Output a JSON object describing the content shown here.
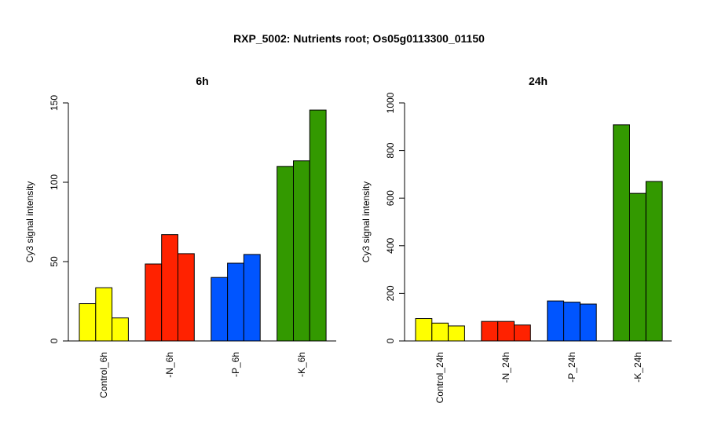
{
  "figure": {
    "title": "RXP_5002: Nutrients root; Os05g0113300_01150"
  },
  "chart_data": [
    {
      "type": "bar",
      "title": "6h",
      "ylabel": "Cy3 signal intensity",
      "ylim": [
        0,
        150
      ],
      "yticks": [
        0,
        50,
        100,
        150
      ],
      "categories": [
        "Control_6h",
        "-N_6h",
        "-P_6h",
        "-K_6h"
      ],
      "group_colors": [
        "#FFFF00",
        "#FF2200",
        "#0055FF",
        "#339900"
      ],
      "values": [
        [
          23.5,
          33.5,
          14.5
        ],
        [
          48.5,
          67.0,
          55.0
        ],
        [
          40.0,
          49.0,
          54.5
        ],
        [
          110.0,
          113.5,
          145.5
        ]
      ],
      "grid": false
    },
    {
      "type": "bar",
      "title": "24h",
      "ylabel": "Cy3 signal intensity",
      "ylim": [
        0,
        1000
      ],
      "yticks": [
        0,
        200,
        400,
        600,
        800,
        1000
      ],
      "categories": [
        "Control_24h",
        "-N_24h",
        "-P_24h",
        "-K_24h"
      ],
      "group_colors": [
        "#FFFF00",
        "#FF2200",
        "#0055FF",
        "#339900"
      ],
      "values": [
        [
          94,
          75,
          63
        ],
        [
          82,
          82,
          67
        ],
        [
          168,
          163,
          155
        ],
        [
          908,
          620,
          670
        ]
      ],
      "grid": false
    }
  ]
}
